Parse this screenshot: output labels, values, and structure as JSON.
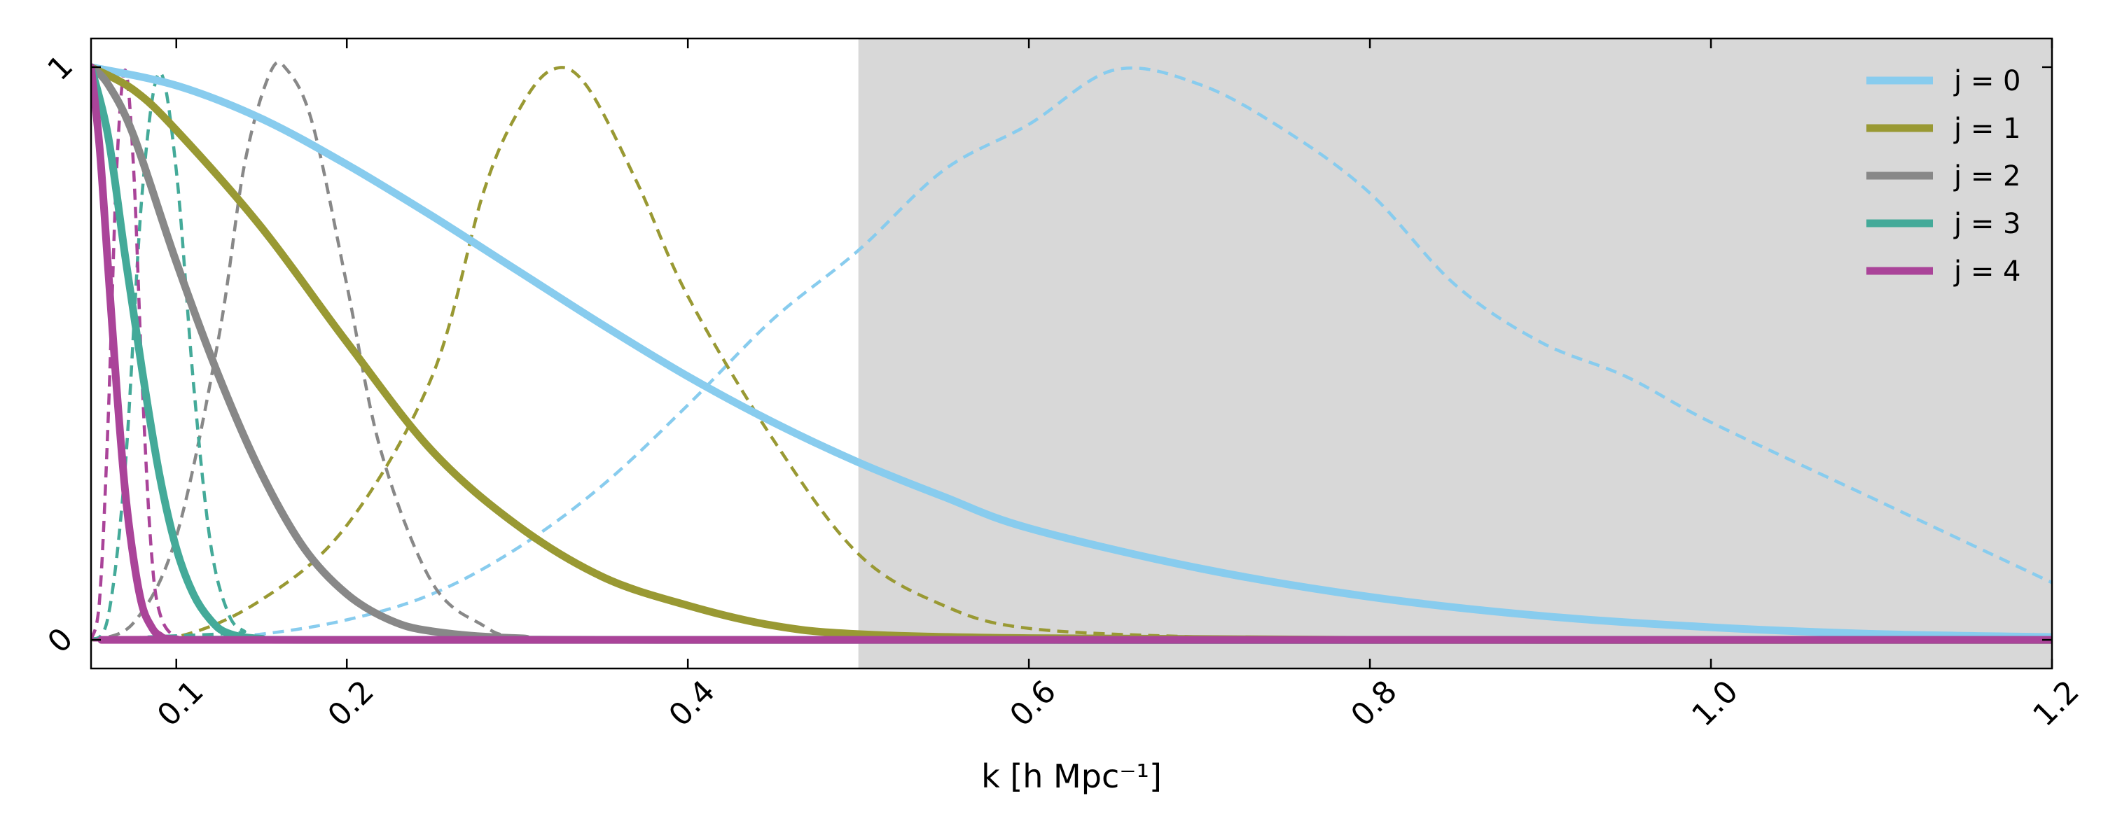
{
  "chart_data": {
    "type": "line",
    "xlabel": "k [h Mpc⁻¹]",
    "xlim": [
      0.05,
      1.2
    ],
    "ylim": [
      -0.05,
      1.05
    ],
    "x_ticks": [
      0.1,
      0.2,
      0.4,
      0.6,
      0.8,
      1.0,
      1.2
    ],
    "x_tick_labels": [
      "0.1",
      "0.2",
      "0.4",
      "0.6",
      "0.8",
      "1.0",
      "1.2"
    ],
    "y_ticks": [
      0,
      1
    ],
    "y_tick_labels": [
      "0",
      "1"
    ],
    "shaded_region": {
      "x_start": 0.5,
      "x_end": 1.2,
      "color": "#d8d8d8"
    },
    "legend_position": "top-right",
    "series": [
      {
        "name": "j = 0",
        "color": "#88CCEE",
        "solid": [
          [
            0.05,
            1.0
          ],
          [
            0.1,
            0.968
          ],
          [
            0.15,
            0.91
          ],
          [
            0.2,
            0.83
          ],
          [
            0.25,
            0.74
          ],
          [
            0.3,
            0.645
          ],
          [
            0.35,
            0.55
          ],
          [
            0.4,
            0.46
          ],
          [
            0.45,
            0.38
          ],
          [
            0.5,
            0.31
          ],
          [
            0.55,
            0.25
          ],
          [
            0.6,
            0.195
          ],
          [
            0.7,
            0.125
          ],
          [
            0.8,
            0.075
          ],
          [
            0.9,
            0.042
          ],
          [
            1.0,
            0.022
          ],
          [
            1.1,
            0.01
          ],
          [
            1.2,
            0.005
          ]
        ],
        "dashed": [
          [
            0.05,
            0.0
          ],
          [
            0.1,
            0.0
          ],
          [
            0.15,
            0.01
          ],
          [
            0.2,
            0.035
          ],
          [
            0.25,
            0.08
          ],
          [
            0.3,
            0.16
          ],
          [
            0.35,
            0.27
          ],
          [
            0.4,
            0.41
          ],
          [
            0.45,
            0.56
          ],
          [
            0.5,
            0.68
          ],
          [
            0.55,
            0.82
          ],
          [
            0.6,
            0.9
          ],
          [
            0.65,
            0.995
          ],
          [
            0.7,
            0.97
          ],
          [
            0.75,
            0.89
          ],
          [
            0.8,
            0.78
          ],
          [
            0.85,
            0.62
          ],
          [
            0.9,
            0.52
          ],
          [
            0.95,
            0.46
          ],
          [
            1.0,
            0.38
          ],
          [
            1.1,
            0.24
          ],
          [
            1.2,
            0.1
          ]
        ]
      },
      {
        "name": "j = 1",
        "color": "#999933",
        "solid": [
          [
            0.05,
            1.0
          ],
          [
            0.075,
            0.96
          ],
          [
            0.1,
            0.89
          ],
          [
            0.15,
            0.72
          ],
          [
            0.2,
            0.52
          ],
          [
            0.25,
            0.33
          ],
          [
            0.3,
            0.2
          ],
          [
            0.35,
            0.11
          ],
          [
            0.4,
            0.06
          ],
          [
            0.45,
            0.025
          ],
          [
            0.5,
            0.01
          ],
          [
            0.6,
            0.003
          ],
          [
            0.8,
            0.0
          ],
          [
            1.2,
            0.0
          ]
        ],
        "dashed": [
          [
            0.05,
            0.0
          ],
          [
            0.1,
            0.005
          ],
          [
            0.15,
            0.07
          ],
          [
            0.2,
            0.2
          ],
          [
            0.25,
            0.46
          ],
          [
            0.28,
            0.78
          ],
          [
            0.3,
            0.92
          ],
          [
            0.32,
            0.995
          ],
          [
            0.34,
            0.97
          ],
          [
            0.37,
            0.8
          ],
          [
            0.4,
            0.6
          ],
          [
            0.45,
            0.35
          ],
          [
            0.5,
            0.15
          ],
          [
            0.55,
            0.06
          ],
          [
            0.6,
            0.02
          ],
          [
            0.7,
            0.005
          ],
          [
            0.8,
            0.0
          ],
          [
            1.2,
            0.0
          ]
        ]
      },
      {
        "name": "j = 2",
        "color": "#888888",
        "solid": [
          [
            0.05,
            1.0
          ],
          [
            0.06,
            0.97
          ],
          [
            0.075,
            0.88
          ],
          [
            0.1,
            0.66
          ],
          [
            0.125,
            0.46
          ],
          [
            0.15,
            0.29
          ],
          [
            0.175,
            0.16
          ],
          [
            0.2,
            0.08
          ],
          [
            0.225,
            0.035
          ],
          [
            0.25,
            0.015
          ],
          [
            0.3,
            0.003
          ],
          [
            0.4,
            0.0
          ],
          [
            1.2,
            0.0
          ]
        ],
        "dashed": [
          [
            0.05,
            0.0
          ],
          [
            0.075,
            0.03
          ],
          [
            0.1,
            0.18
          ],
          [
            0.125,
            0.53
          ],
          [
            0.14,
            0.83
          ],
          [
            0.155,
            0.99
          ],
          [
            0.165,
            0.995
          ],
          [
            0.18,
            0.9
          ],
          [
            0.2,
            0.62
          ],
          [
            0.22,
            0.33
          ],
          [
            0.25,
            0.1
          ],
          [
            0.28,
            0.025
          ],
          [
            0.3,
            0.005
          ],
          [
            0.35,
            0.0
          ],
          [
            1.2,
            0.0
          ]
        ]
      },
      {
        "name": "j = 3",
        "color": "#44AA99",
        "solid": [
          [
            0.05,
            1.0
          ],
          [
            0.06,
            0.88
          ],
          [
            0.07,
            0.67
          ],
          [
            0.08,
            0.47
          ],
          [
            0.09,
            0.29
          ],
          [
            0.1,
            0.16
          ],
          [
            0.11,
            0.08
          ],
          [
            0.12,
            0.035
          ],
          [
            0.13,
            0.012
          ],
          [
            0.15,
            0.002
          ],
          [
            0.2,
            0.0
          ],
          [
            1.2,
            0.0
          ]
        ],
        "dashed": [
          [
            0.05,
            0.0
          ],
          [
            0.06,
            0.04
          ],
          [
            0.07,
            0.3
          ],
          [
            0.08,
            0.78
          ],
          [
            0.09,
            0.99
          ],
          [
            0.1,
            0.82
          ],
          [
            0.11,
            0.45
          ],
          [
            0.12,
            0.17
          ],
          [
            0.13,
            0.05
          ],
          [
            0.14,
            0.015
          ],
          [
            0.16,
            0.0
          ],
          [
            1.2,
            0.0
          ]
        ]
      },
      {
        "name": "j = 4",
        "color": "#AA4499",
        "solid": [
          [
            0.05,
            1.0
          ],
          [
            0.055,
            0.86
          ],
          [
            0.06,
            0.65
          ],
          [
            0.065,
            0.44
          ],
          [
            0.07,
            0.26
          ],
          [
            0.075,
            0.14
          ],
          [
            0.08,
            0.06
          ],
          [
            0.085,
            0.025
          ],
          [
            0.09,
            0.008
          ],
          [
            0.1,
            0.001
          ],
          [
            0.15,
            0.0
          ],
          [
            1.2,
            0.0
          ]
        ],
        "dashed": [
          [
            0.05,
            0.0
          ],
          [
            0.055,
            0.07
          ],
          [
            0.06,
            0.38
          ],
          [
            0.065,
            0.82
          ],
          [
            0.07,
            0.995
          ],
          [
            0.075,
            0.82
          ],
          [
            0.08,
            0.45
          ],
          [
            0.085,
            0.17
          ],
          [
            0.09,
            0.05
          ],
          [
            0.1,
            0.005
          ],
          [
            0.12,
            0.0
          ],
          [
            1.2,
            0.0
          ]
        ]
      }
    ]
  }
}
